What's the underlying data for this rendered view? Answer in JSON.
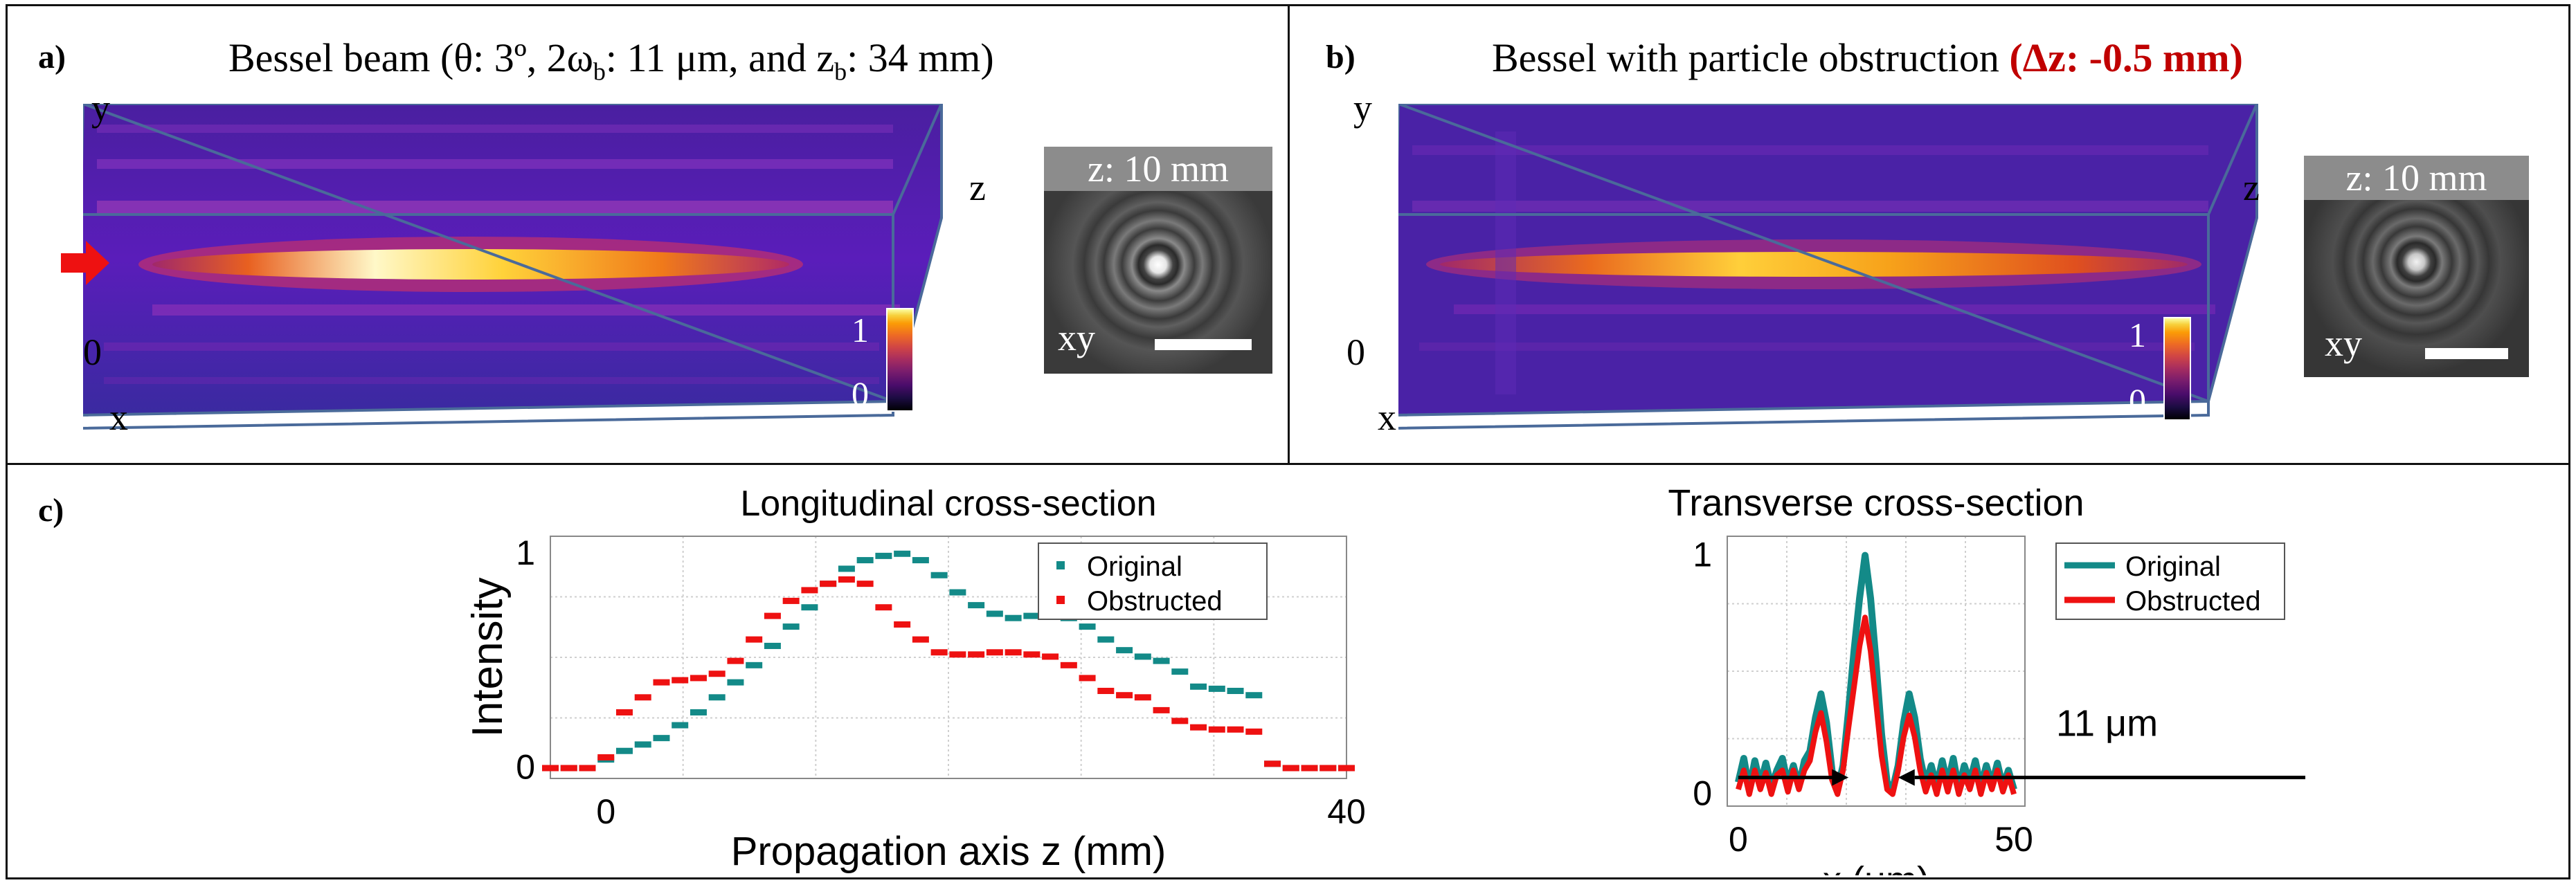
{
  "panel_a": {
    "label": "a)",
    "title": "Bessel beam (θ: 3º, 2ω",
    "title_sub1": "b",
    "title_mid": ": 11 μm, and z",
    "title_sub2": "b",
    "title_end": ": 34 mm)",
    "axis_y": "y",
    "axis_z": "z",
    "axis_x": "x",
    "axis_zero": "0",
    "cbar_max": "1",
    "cbar_min": "0",
    "inset_label": "z: 10 mm",
    "inset_xy": "xy"
  },
  "panel_b": {
    "label": "b)",
    "title": "Bessel with particle obstruction",
    "title_highlight": "(Δz: -0.5 mm)",
    "axis_y": "y",
    "axis_z": "z",
    "axis_x": "x",
    "axis_zero": "0",
    "cbar_max": "1",
    "cbar_min": "0",
    "inset_label": "z: 10 mm",
    "inset_xy": "xy"
  },
  "panel_c": {
    "label": "c)"
  },
  "colors": {
    "original": "#138a88",
    "obstructed": "#ee1111",
    "highlight": "#c00000",
    "arrow": "#ee1111"
  },
  "chart_data": [
    {
      "type": "scatter",
      "title": "Longitudinal cross-section",
      "xlabel": "Propagation axis z (mm)",
      "ylabel": "Intensity",
      "xlim": [
        -3,
        40
      ],
      "ylim": [
        -0.05,
        1.08
      ],
      "xticks": [
        "0",
        "40"
      ],
      "yticks": [
        "0",
        "1"
      ],
      "legend": [
        "Original",
        "Obstructed"
      ],
      "series": [
        {
          "name": "Original",
          "x": [
            -3,
            -2,
            -1,
            0,
            1,
            2,
            3,
            4,
            5,
            6,
            7,
            8,
            9,
            10,
            11,
            12,
            13,
            14,
            15,
            16,
            17,
            18,
            19,
            20,
            21,
            22,
            23,
            24,
            25,
            26,
            27,
            28,
            29,
            30,
            31,
            32,
            33,
            34,
            35,
            36,
            37,
            38,
            39,
            40
          ],
          "y": [
            0,
            0,
            0,
            0.04,
            0.08,
            0.11,
            0.14,
            0.2,
            0.26,
            0.33,
            0.4,
            0.48,
            0.57,
            0.66,
            0.75,
            0.86,
            0.93,
            0.97,
            0.99,
            1.0,
            0.97,
            0.9,
            0.82,
            0.76,
            0.72,
            0.7,
            0.71,
            0.72,
            0.7,
            0.66,
            0.6,
            0.55,
            0.52,
            0.5,
            0.45,
            0.38,
            0.37,
            0.36,
            0.34,
            0.02,
            0,
            0,
            0,
            0
          ]
        },
        {
          "name": "Obstructed",
          "x": [
            -3,
            -2,
            -1,
            0,
            1,
            2,
            3,
            4,
            5,
            6,
            7,
            8,
            9,
            10,
            11,
            12,
            13,
            14,
            15,
            16,
            17,
            18,
            19,
            20,
            21,
            22,
            23,
            24,
            25,
            26,
            27,
            28,
            29,
            30,
            31,
            32,
            33,
            34,
            35,
            36,
            37,
            38,
            39,
            40
          ],
          "y": [
            0,
            0,
            0,
            0.05,
            0.26,
            0.33,
            0.4,
            0.41,
            0.42,
            0.44,
            0.5,
            0.6,
            0.71,
            0.78,
            0.83,
            0.86,
            0.88,
            0.86,
            0.75,
            0.67,
            0.6,
            0.54,
            0.53,
            0.53,
            0.54,
            0.54,
            0.53,
            0.52,
            0.48,
            0.42,
            0.36,
            0.34,
            0.33,
            0.27,
            0.22,
            0.19,
            0.18,
            0.18,
            0.17,
            0.02,
            0,
            0,
            0,
            0
          ]
        }
      ]
    },
    {
      "type": "line",
      "title": "Transverse cross-section",
      "xlabel": "x (μm)",
      "ylabel": "",
      "xlim": [
        -2,
        52
      ],
      "ylim": [
        -0.05,
        1.08
      ],
      "xticks": [
        "0",
        "50"
      ],
      "yticks": [
        "0",
        "1"
      ],
      "legend": [
        "Original",
        "Obstructed"
      ],
      "annotation": "11 μm",
      "series": [
        {
          "name": "Original",
          "x": [
            0,
            1,
            2,
            3,
            4,
            5,
            6,
            7,
            8,
            9,
            10,
            11,
            12,
            13,
            14,
            15,
            16,
            17,
            18,
            19,
            20,
            21,
            22,
            23,
            24,
            25,
            26,
            27,
            28,
            29,
            30,
            31,
            32,
            33,
            34,
            35,
            36,
            37,
            38,
            39,
            40,
            41,
            42,
            43,
            44,
            45,
            46,
            47,
            48,
            49,
            50
          ],
          "y": [
            0.05,
            0.15,
            0.02,
            0.14,
            0.04,
            0.13,
            0.03,
            0.1,
            0.15,
            0.04,
            0.12,
            0.03,
            0.14,
            0.18,
            0.32,
            0.42,
            0.3,
            0.1,
            0.02,
            0.12,
            0.35,
            0.6,
            0.82,
            1.0,
            0.82,
            0.55,
            0.25,
            0.05,
            0.02,
            0.12,
            0.3,
            0.42,
            0.32,
            0.15,
            0.04,
            0.12,
            0.03,
            0.14,
            0.04,
            0.15,
            0.02,
            0.12,
            0.05,
            0.14,
            0.03,
            0.12,
            0.04,
            0.13,
            0.03,
            0.1,
            0.02
          ]
        },
        {
          "name": "Obstructed",
          "x": [
            0,
            1,
            2,
            3,
            4,
            5,
            6,
            7,
            8,
            9,
            10,
            11,
            12,
            13,
            14,
            15,
            16,
            17,
            18,
            19,
            20,
            21,
            22,
            23,
            24,
            25,
            26,
            27,
            28,
            29,
            30,
            31,
            32,
            33,
            34,
            35,
            36,
            37,
            38,
            39,
            40,
            41,
            42,
            43,
            44,
            45,
            46,
            47,
            48,
            49,
            50
          ],
          "y": [
            0.02,
            0.1,
            0.0,
            0.1,
            0.02,
            0.09,
            0.0,
            0.08,
            0.1,
            0.01,
            0.1,
            0.02,
            0.1,
            0.14,
            0.26,
            0.34,
            0.22,
            0.06,
            0.0,
            0.1,
            0.28,
            0.45,
            0.62,
            0.74,
            0.6,
            0.38,
            0.16,
            0.02,
            0.0,
            0.1,
            0.24,
            0.33,
            0.24,
            0.1,
            0.01,
            0.08,
            0.0,
            0.1,
            0.01,
            0.1,
            0.0,
            0.08,
            0.02,
            0.1,
            0.0,
            0.09,
            0.02,
            0.1,
            0.01,
            0.08,
            0.0
          ]
        }
      ]
    }
  ]
}
